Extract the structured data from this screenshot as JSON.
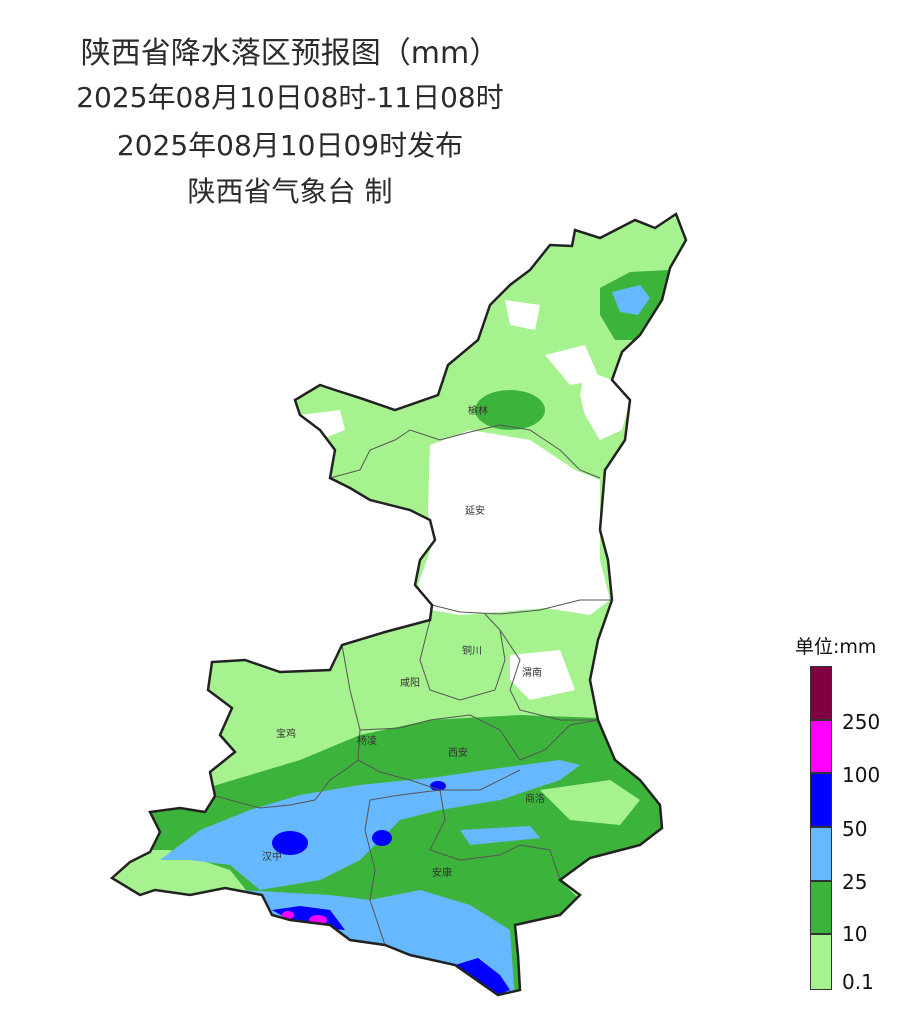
{
  "title": {
    "line1": "陕西省降水落区预报图（mm）",
    "line2": "2025年08月10日08时-11日08时",
    "line3": "2025年08月10日09时发布",
    "line4": "陕西省气象台 制"
  },
  "cities": [
    {
      "name": "榆林"
    },
    {
      "name": "延安"
    },
    {
      "name": "铜川"
    },
    {
      "name": "咸阳"
    },
    {
      "name": "渭南"
    },
    {
      "name": "宝鸡"
    },
    {
      "name": "杨凌"
    },
    {
      "name": "西安"
    },
    {
      "name": "商洛"
    },
    {
      "name": "汉中"
    },
    {
      "name": "安康"
    }
  ],
  "legend": {
    "title": "单位:mm",
    "levels": [
      {
        "label": "",
        "color": "#800040"
      },
      {
        "label": "250",
        "color": "#ff00ff"
      },
      {
        "label": "100",
        "color": "#0000ff"
      },
      {
        "label": "50",
        "color": "#66b8ff"
      },
      {
        "label": "25",
        "color": "#3cb43c"
      },
      {
        "label": "10",
        "color": "#a6f28f"
      },
      {
        "label": "0.1",
        "color": ""
      }
    ]
  }
}
